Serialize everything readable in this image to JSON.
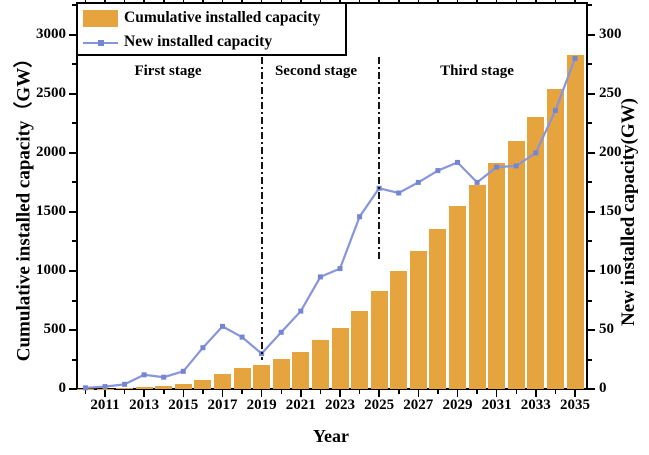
{
  "legend": {
    "items": [
      {
        "label": "Cumulative installed capacity"
      },
      {
        "label": "New installed capacity"
      }
    ]
  },
  "stages": {
    "labels": [
      "First stage",
      "Second stage",
      "Third stage"
    ],
    "divider_years": [
      2019,
      2025
    ]
  },
  "axes": {
    "left": {
      "label": "Cumulative installed capacity（GW）",
      "tick_values": [
        0,
        500,
        1000,
        1500,
        2000,
        2500,
        3000
      ]
    },
    "right": {
      "label": "New installed capacity(GW)",
      "tick_values": [
        0,
        50,
        100,
        150,
        200,
        250,
        300
      ]
    },
    "x": {
      "label": "Year",
      "tick_values": [
        2011,
        2013,
        2015,
        2017,
        2019,
        2021,
        2023,
        2025,
        2027,
        2029,
        2031,
        2033,
        2035
      ]
    }
  },
  "chart_data": {
    "type": "bar+line",
    "categories": [
      2010,
      2011,
      2012,
      2013,
      2014,
      2015,
      2016,
      2017,
      2018,
      2019,
      2020,
      2021,
      2022,
      2023,
      2024,
      2025,
      2026,
      2027,
      2028,
      2029,
      2030,
      2031,
      2032,
      2033,
      2034,
      2035
    ],
    "series": [
      {
        "name": "Cumulative installed capacity",
        "type": "bar",
        "axis": "left",
        "color": "#E5A43E",
        "values": [
          1,
          3,
          7,
          19,
          28,
          43,
          77,
          130,
          175,
          204,
          253,
          318,
          413,
          515,
          661,
          831,
          998,
          1173,
          1358,
          1550,
          1725,
          1913,
          2102,
          2302,
          2538,
          2830
        ]
      },
      {
        "name": "New installed capacity",
        "type": "line",
        "axis": "right",
        "color": "#8795DC",
        "marker": "square",
        "marker_color": "#7485D2",
        "values": [
          1,
          2,
          4,
          12,
          10,
          15,
          35,
          53,
          44,
          30,
          48,
          66,
          95,
          102,
          146,
          170,
          166,
          175,
          185,
          192,
          175,
          188,
          189,
          200,
          236,
          280
        ]
      }
    ],
    "xlabel": "Year",
    "ylabel_left": "Cumulative installed capacity（GW）",
    "ylabel_right": "New installed capacity(GW)",
    "left_ylim": [
      0,
      3270
    ],
    "right_ylim": [
      0,
      327
    ],
    "grid": false,
    "legend_position": "top-left",
    "stage_dividers": [
      2019,
      2025
    ],
    "stage_labels": [
      "First stage",
      "Second stage",
      "Third stage"
    ]
  }
}
